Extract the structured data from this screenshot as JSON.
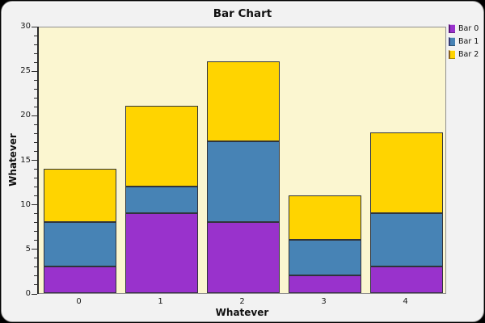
{
  "chart_data": {
    "type": "bar",
    "stacked": true,
    "title": "Bar Chart",
    "xlabel": "Whatever",
    "ylabel": "Whatever",
    "categories": [
      "0",
      "1",
      "2",
      "3",
      "4"
    ],
    "series": [
      {
        "name": "Bar 0",
        "color": "#9932CC",
        "values": [
          3,
          9,
          8,
          2,
          3
        ]
      },
      {
        "name": "Bar 1",
        "color": "#4783B5",
        "values": [
          5,
          3,
          9,
          4,
          6
        ]
      },
      {
        "name": "Bar 2",
        "color": "#FFD400",
        "values": [
          6,
          9,
          9,
          5,
          9
        ]
      }
    ],
    "stack_totals": [
      14,
      21,
      26,
      11,
      18
    ],
    "ylim": [
      0,
      30
    ],
    "y_major_ticks": [
      0,
      5,
      10,
      15,
      20,
      25,
      30
    ],
    "y_minor_step": 1,
    "legend_position": "top-right",
    "grid": false,
    "colors": {
      "plot_background": "#FBF6D0",
      "panel_background": "#F2F2F2",
      "outer_background": "#000000",
      "axis_line": "#2A2A2A",
      "segment_outline": "#30343C",
      "text": "#111111"
    }
  }
}
